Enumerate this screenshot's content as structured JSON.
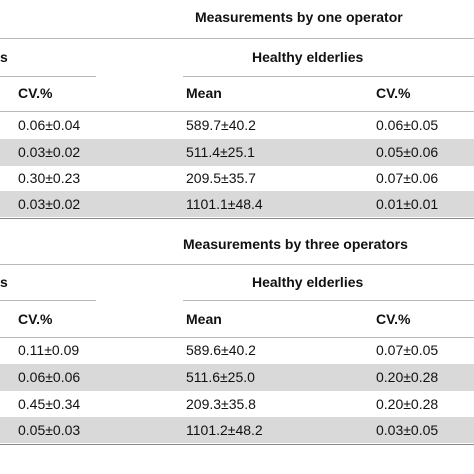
{
  "section1": {
    "title": "Measurements by one operator",
    "left_group_fragment": "s",
    "group_title": "Healthy elderlies",
    "col_cv_left": "CV.%",
    "col_mean": "Mean",
    "col_cv_right": "CV.%",
    "rows": [
      {
        "cv_left": "0.06±0.04",
        "mean": "589.7±40.2",
        "cv_right": "0.06±0.05"
      },
      {
        "cv_left": "0.03±0.02",
        "mean": "511.4±25.1",
        "cv_right": "0.05±0.06"
      },
      {
        "cv_left": "0.30±0.23",
        "mean": "209.5±35.7",
        "cv_right": "0.07±0.06"
      },
      {
        "cv_left": "0.03±0.02",
        "mean": "1101.1±48.4",
        "cv_right": "0.01±0.01"
      }
    ]
  },
  "section2": {
    "title": "Measurements by three operators",
    "left_group_fragment": "s",
    "group_title": "Healthy elderlies",
    "col_cv_left": "CV.%",
    "col_mean": "Mean",
    "col_cv_right": "CV.%",
    "rows": [
      {
        "cv_left": "0.11±0.09",
        "mean": "589.6±40.2",
        "cv_right": "0.07±0.05"
      },
      {
        "cv_left": "0.06±0.06",
        "mean": "511.6±25.0",
        "cv_right": "0.20±0.28"
      },
      {
        "cv_left": "0.45±0.34",
        "mean": "209.3±35.8",
        "cv_right": "0.20±0.28"
      },
      {
        "cv_left": "0.05±0.03",
        "mean": "1101.2±48.2",
        "cv_right": "0.03±0.05"
      }
    ]
  },
  "colors": {
    "band": "#d9d9d9",
    "rule": "#b8b8b8",
    "text": "#111111"
  }
}
